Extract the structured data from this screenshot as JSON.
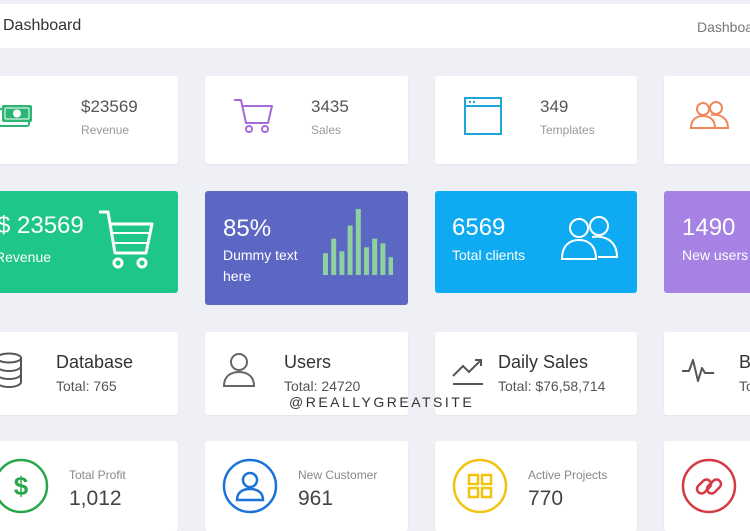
{
  "header": {
    "title": "Dashboard",
    "breadcrumb": "Dashboard"
  },
  "stats_row": [
    {
      "value": "$23569",
      "label": "Revenue",
      "icon": "money-icon",
      "color": "#2bb673"
    },
    {
      "value": "3435",
      "label": "Sales",
      "icon": "cart-icon",
      "color": "#a66bd8"
    },
    {
      "value": "349",
      "label": "Templates",
      "icon": "browser-window-icon",
      "color": "#1fa6d8"
    },
    {
      "value": "",
      "label": "",
      "icon": "users-icon",
      "color": "#f0885b"
    }
  ],
  "colored_row": [
    {
      "value": "$ 23569",
      "label": "Revenue",
      "icon": "cart-icon",
      "color": "#1ec68a"
    },
    {
      "value": "85%",
      "label": "Dummy text here",
      "icon": "bar-chart-icon",
      "color": "#5b67c2",
      "bars": [
        0.33,
        0.55,
        0.36,
        0.75,
        1.0,
        0.42,
        0.55,
        0.48,
        0.27
      ]
    },
    {
      "value": "6569",
      "label": "Total clients",
      "icon": "users-icon",
      "color": "#0eabf2"
    },
    {
      "value": "1490",
      "label": "New users",
      "icon": "",
      "color": "#a582e3"
    }
  ],
  "summary_row": [
    {
      "name": "Database",
      "total": "Total: 765",
      "icon": "database-icon"
    },
    {
      "name": "Users",
      "total": "Total: 24720",
      "icon": "user-icon"
    },
    {
      "name": "Daily Sales",
      "total": "Total: $76,58,714",
      "icon": "trend-up-icon"
    },
    {
      "name": "B",
      "total": "To",
      "icon": "pulse-icon"
    }
  ],
  "bottom_row": [
    {
      "label": "Total Profit",
      "value": "1,012",
      "icon": "dollar-circle-icon",
      "color": "#27a74a"
    },
    {
      "label": "New Customer",
      "value": "961",
      "icon": "user-circle-icon",
      "color": "#1a73d9"
    },
    {
      "label": "Active Projects",
      "value": "770",
      "icon": "grid-circle-icon",
      "color": "#f2c20f"
    },
    {
      "label": "",
      "value": "",
      "icon": "link-circle-icon",
      "color": "#d63a45"
    }
  ],
  "watermark": "@REALLYGREATSITE"
}
